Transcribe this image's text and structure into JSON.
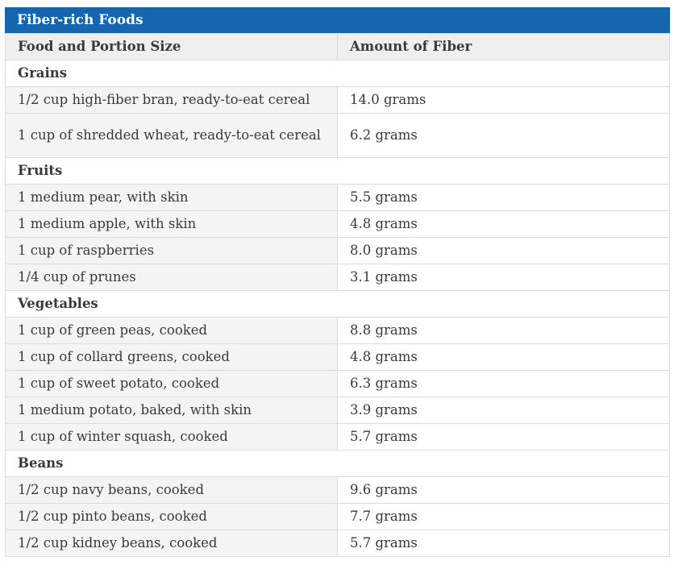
{
  "table": {
    "title": "Fiber-rich Foods",
    "headers": {
      "food": "Food and Portion Size",
      "amount": "Amount of Fiber"
    },
    "groups": [
      {
        "category": "Grains",
        "items": [
          {
            "food": "1/2 cup high-fiber bran, ready-to-eat cereal",
            "amount": "14.0 grams"
          },
          {
            "food": "1 cup of shredded wheat, ready-to-eat cereal",
            "amount": "6.2 grams"
          }
        ]
      },
      {
        "category": "Fruits",
        "items": [
          {
            "food": "1 medium pear, with skin",
            "amount": "5.5 grams"
          },
          {
            "food": "1 medium apple, with skin",
            "amount": "4.8 grams"
          },
          {
            "food": "1 cup of raspberries",
            "amount": "8.0 grams"
          },
          {
            "food": "1/4 cup of prunes",
            "amount": "3.1 grams"
          }
        ]
      },
      {
        "category": "Vegetables",
        "items": [
          {
            "food": "1 cup of green peas, cooked",
            "amount": "8.8 grams"
          },
          {
            "food": "1 cup of collard greens, cooked",
            "amount": "4.8 grams"
          },
          {
            "food": "1 cup of sweet potato, cooked",
            "amount": "6.3 grams"
          },
          {
            "food": "1 medium potato, baked, with skin",
            "amount": "3.9 grams"
          },
          {
            "food": "1 cup of winter squash, cooked",
            "amount": "5.7 grams"
          }
        ]
      },
      {
        "category": "Beans",
        "items": [
          {
            "food": "1/2 cup navy beans, cooked",
            "amount": "9.6 grams"
          },
          {
            "food": "1/2 cup pinto beans, cooked",
            "amount": "7.7 grams"
          },
          {
            "food": "1/2 cup kidney beans, cooked",
            "amount": "5.7 grams"
          }
        ]
      }
    ]
  }
}
